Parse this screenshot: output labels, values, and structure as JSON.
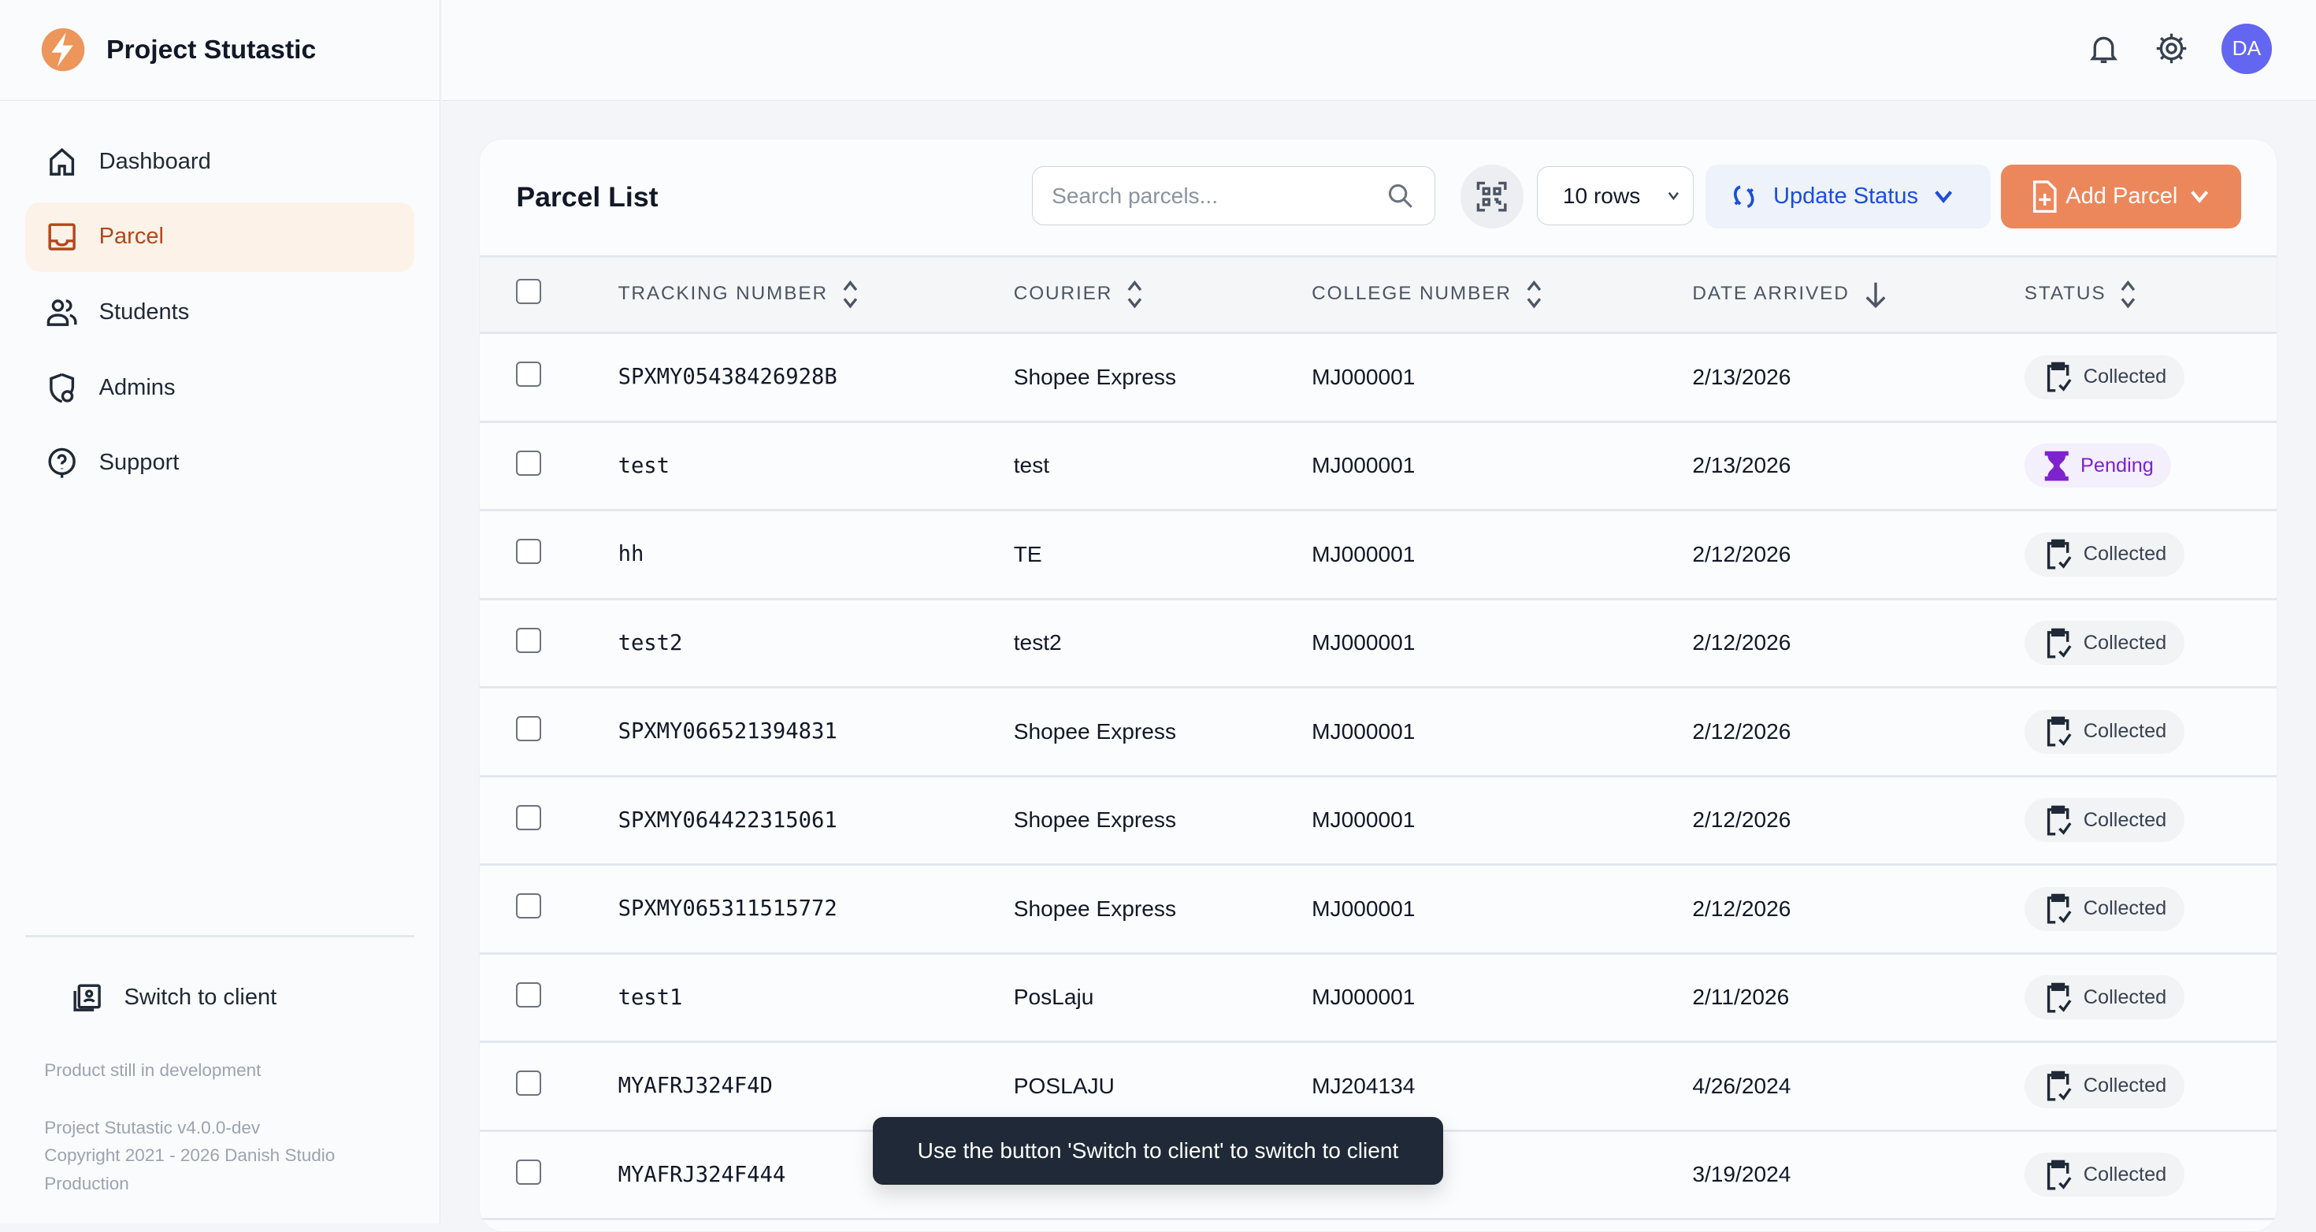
{
  "app": {
    "title": "Project Stutastic",
    "accent": "#ec875c"
  },
  "sidebar": {
    "items": [
      {
        "label": "Dashboard",
        "icon": "home-icon"
      },
      {
        "label": "Parcel",
        "icon": "inbox-icon",
        "active": true
      },
      {
        "label": "Students",
        "icon": "users-icon"
      },
      {
        "label": "Admins",
        "icon": "shield-user-icon"
      },
      {
        "label": "Support",
        "icon": "help-icon"
      }
    ],
    "switch_label": "Switch to client",
    "dev_note": "Product still in development",
    "version": "Project Stutastic v4.0.0-dev",
    "copyright": "Copyright 2021 - 2026 Danish Studio",
    "production": "Production"
  },
  "header": {
    "avatar": "DA"
  },
  "main": {
    "title": "Parcel List",
    "search_placeholder": "Search parcels...",
    "rows_select": "10 rows",
    "update_status": "Update Status",
    "add_parcel": "Add Parcel",
    "columns": [
      "TRACKING NUMBER",
      "COURIER",
      "COLLEGE NUMBER",
      "DATE ARRIVED",
      "STATUS"
    ],
    "rows": [
      {
        "tracking": "SPXMY05438426928B",
        "courier": "Shopee Express",
        "college": "MJ000001",
        "date": "2/13/2026",
        "status": "Collected"
      },
      {
        "tracking": "test",
        "courier": "test",
        "college": "MJ000001",
        "date": "2/13/2026",
        "status": "Pending"
      },
      {
        "tracking": "hh",
        "courier": "TE",
        "college": "MJ000001",
        "date": "2/12/2026",
        "status": "Collected"
      },
      {
        "tracking": "test2",
        "courier": "test2",
        "college": "MJ000001",
        "date": "2/12/2026",
        "status": "Collected"
      },
      {
        "tracking": "SPXMY066521394831",
        "courier": "Shopee Express",
        "college": "MJ000001",
        "date": "2/12/2026",
        "status": "Collected"
      },
      {
        "tracking": "SPXMY064422315061",
        "courier": "Shopee Express",
        "college": "MJ000001",
        "date": "2/12/2026",
        "status": "Collected"
      },
      {
        "tracking": "SPXMY065311515772",
        "courier": "Shopee Express",
        "college": "MJ000001",
        "date": "2/12/2026",
        "status": "Collected"
      },
      {
        "tracking": "test1",
        "courier": "PosLaju",
        "college": "MJ000001",
        "date": "2/11/2026",
        "status": "Collected"
      },
      {
        "tracking": "MYAFRJ324F4D",
        "courier": "POSLAJU",
        "college": "MJ204134",
        "date": "4/26/2024",
        "status": "Collected"
      },
      {
        "tracking": "MYAFRJ324F444",
        "courier": "",
        "college": "",
        "date": "3/19/2024",
        "status": "Collected"
      }
    ]
  },
  "tooltip": "Use the button 'Switch to client' to switch to client"
}
